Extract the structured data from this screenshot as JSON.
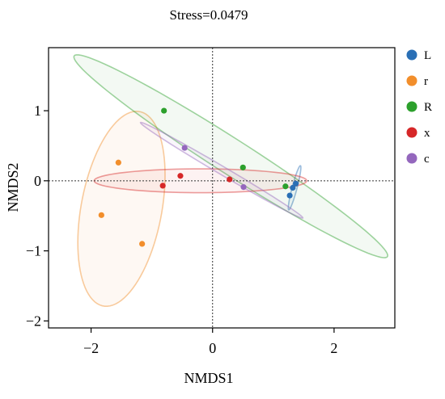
{
  "chart_data": {
    "type": "scatter",
    "title": "Stress=0.0479",
    "xlabel": "NMDS1",
    "ylabel": "NMDS2",
    "xlim": [
      -2.7,
      3.0
    ],
    "ylim": [
      -2.1,
      1.9
    ],
    "xticks": [
      -2,
      0,
      2
    ],
    "xtick_labels": [
      "−2",
      "0",
      "2"
    ],
    "yticks": [
      -2,
      -1,
      0,
      1
    ],
    "ytick_labels": [
      "−2",
      "−1",
      "0",
      "1"
    ],
    "grid": false,
    "reference_lines": {
      "x": 0,
      "y": 0,
      "style": "dotted"
    },
    "legend_position": "right",
    "series": [
      {
        "name": "L",
        "color": "#2a6fb5",
        "points": [
          [
            1.37,
            -0.04
          ],
          [
            1.32,
            -0.1
          ],
          [
            1.27,
            -0.21
          ]
        ],
        "ellipse": {
          "cx": 1.35,
          "cy": -0.1,
          "rx": 0.33,
          "ry": 0.04,
          "angle_deg": 73
        }
      },
      {
        "name": "r",
        "color": "#f28e2b",
        "points": [
          [
            -1.55,
            0.26
          ],
          [
            -1.83,
            -0.49
          ],
          [
            -1.16,
            -0.9
          ]
        ],
        "ellipse": {
          "cx": -1.5,
          "cy": -0.4,
          "rx": 1.42,
          "ry": 0.66,
          "angle_deg": 77
        }
      },
      {
        "name": "R",
        "color": "#2ca02c",
        "points": [
          [
            -0.8,
            1.0
          ],
          [
            0.5,
            0.19
          ],
          [
            1.2,
            -0.08
          ]
        ],
        "ellipse": {
          "cx": 0.3,
          "cy": 0.35,
          "rx": 2.95,
          "ry": 0.26,
          "angle_deg": -29
        }
      },
      {
        "name": "x",
        "color": "#d62728",
        "points": [
          [
            -0.82,
            -0.07
          ],
          [
            -0.53,
            0.07
          ],
          [
            0.28,
            0.02
          ]
        ],
        "ellipse": {
          "cx": -0.2,
          "cy": 0.0,
          "rx": 1.75,
          "ry": 0.17,
          "angle_deg": 0
        }
      },
      {
        "name": "c",
        "color": "#9467bd",
        "points": [
          [
            -0.46,
            0.47
          ],
          [
            0.51,
            -0.09
          ]
        ],
        "ellipse": {
          "cx": 0.15,
          "cy": 0.15,
          "rx": 1.5,
          "ry": 0.06,
          "angle_deg": -27
        }
      }
    ]
  }
}
